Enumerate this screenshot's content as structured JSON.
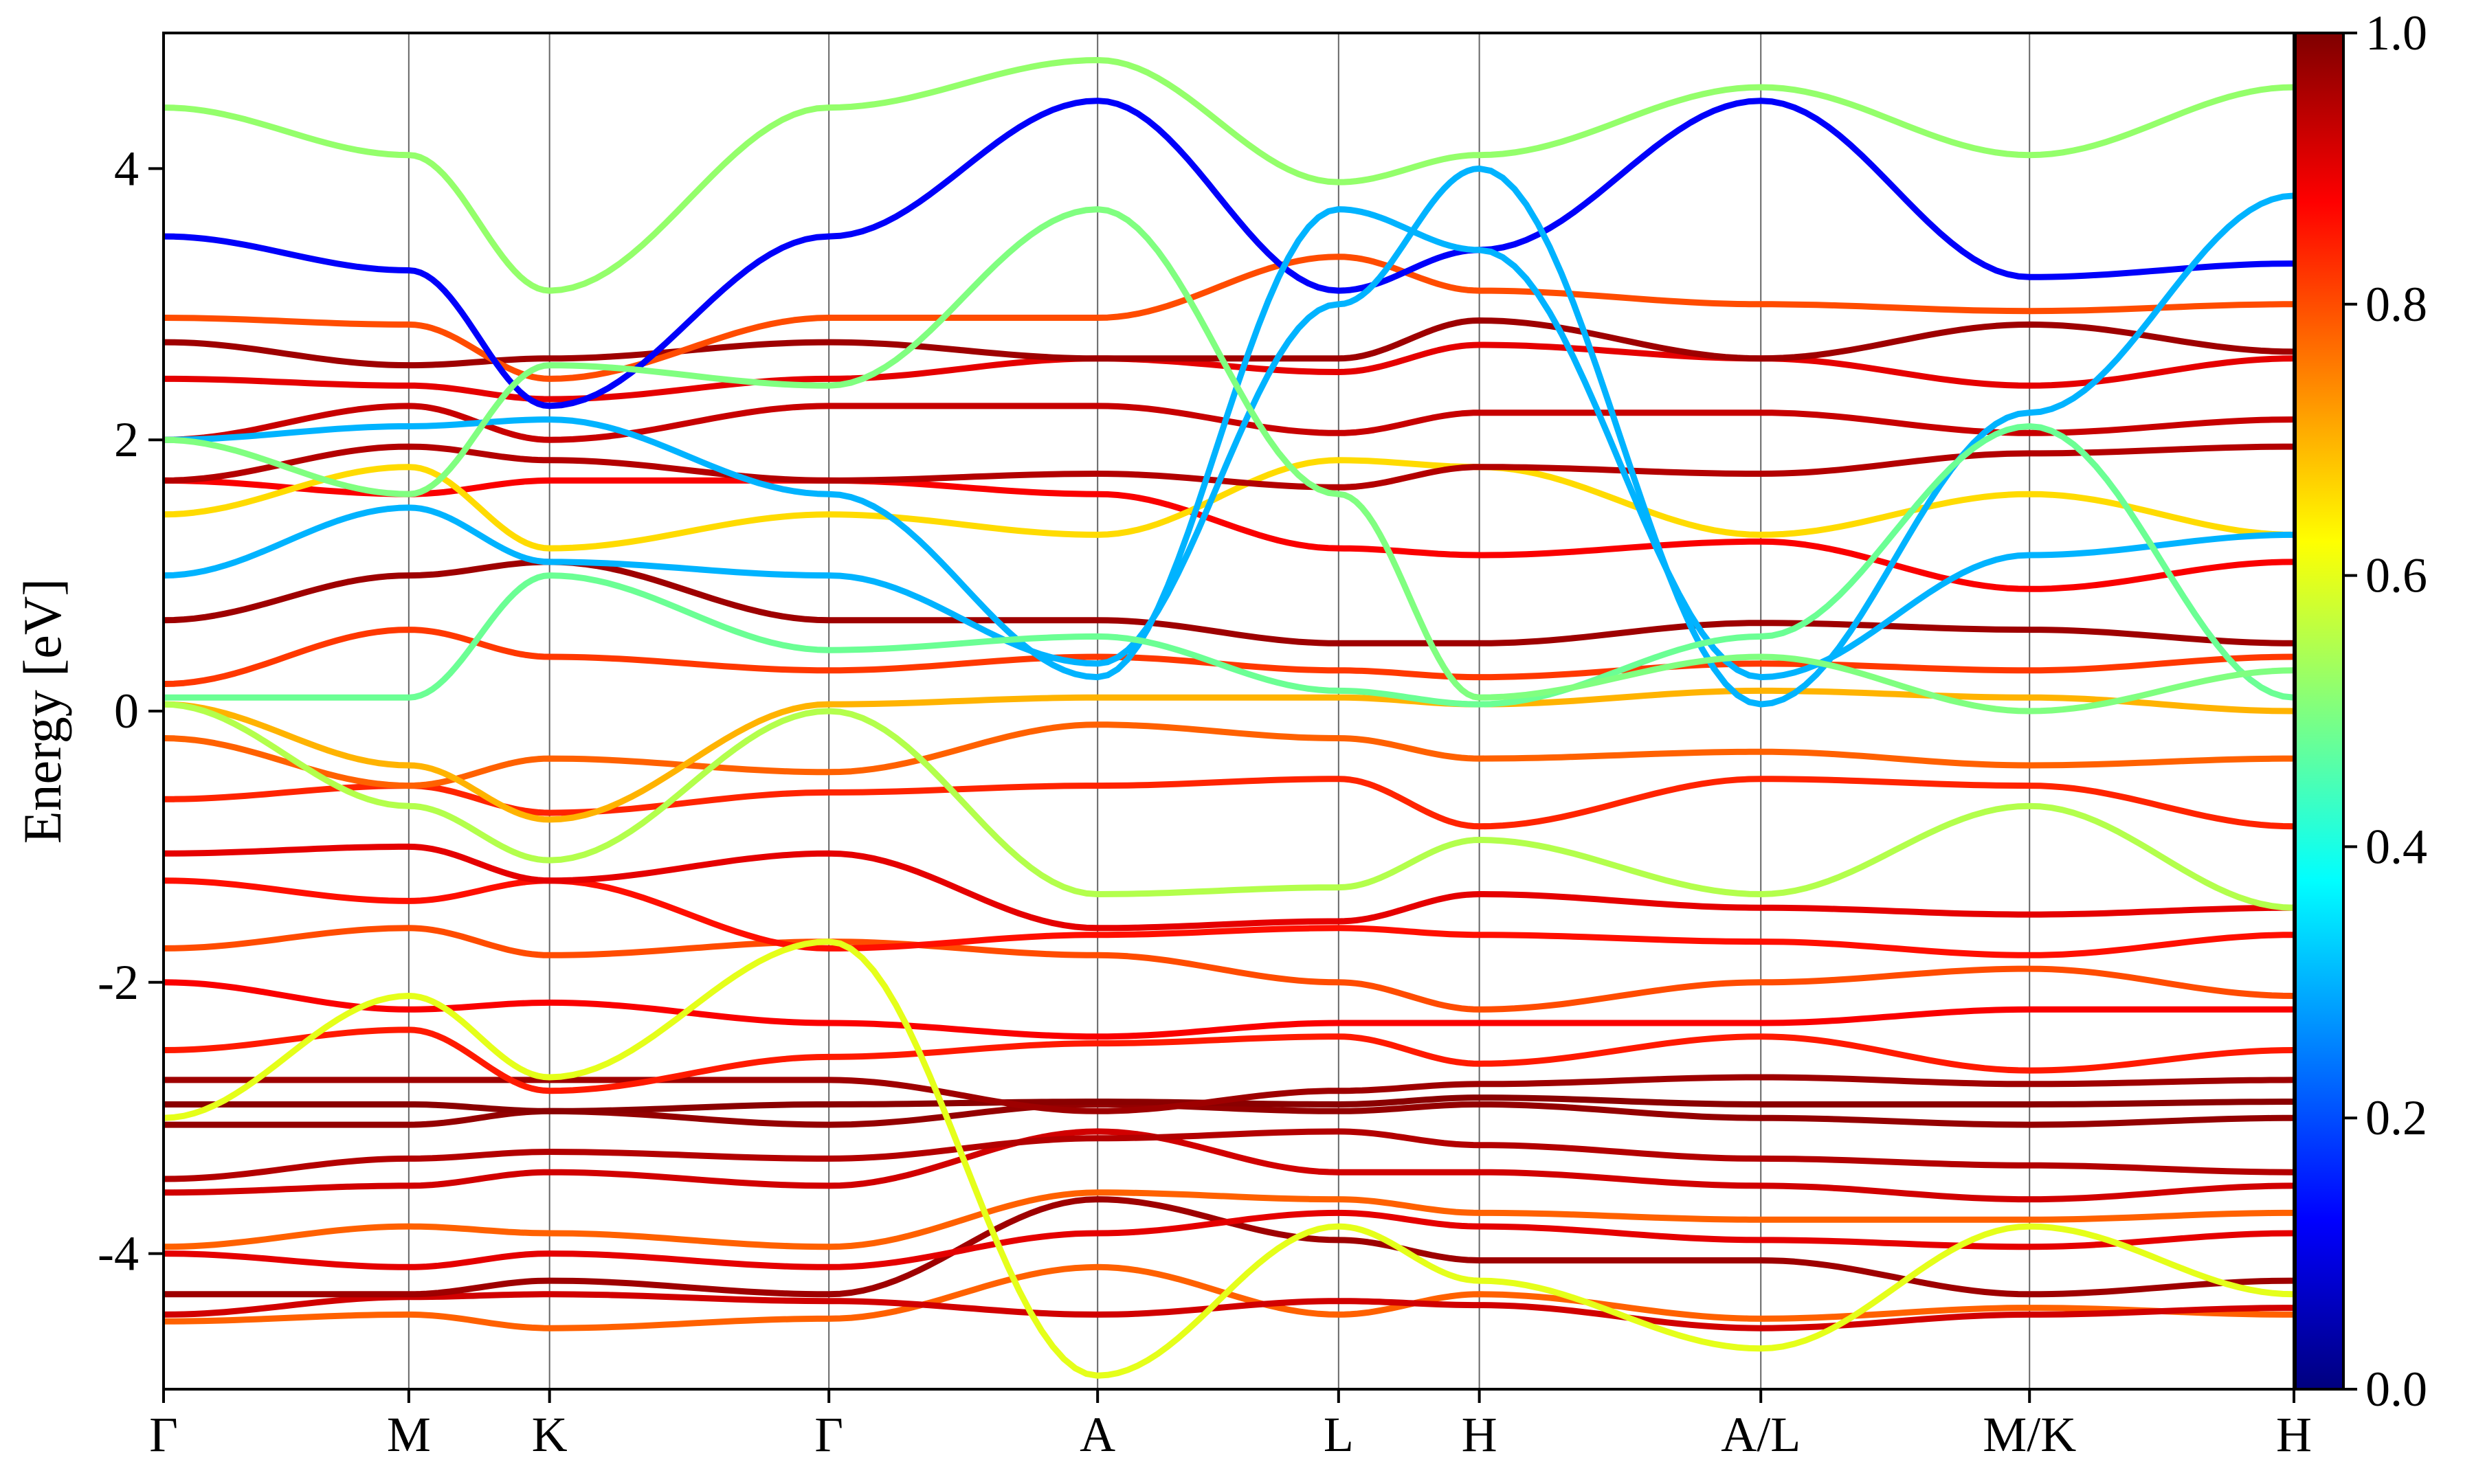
{
  "chart_data": {
    "type": "line",
    "plot_kind": "band structure with projected weight (colored bands)",
    "ylabel": "Energy [eV]",
    "ylim": [
      -5,
      5
    ],
    "yticks": [
      {
        "value": 4,
        "label": "4"
      },
      {
        "value": 2,
        "label": "2"
      },
      {
        "value": 0,
        "label": "0"
      },
      {
        "value": -2,
        "label": "-2"
      },
      {
        "value": -4,
        "label": "-4"
      }
    ],
    "kpath": {
      "segment_lengths": [
        0.115,
        0.066,
        0.131,
        0.126,
        0.113,
        0.066,
        0.132,
        0.126,
        0.124
      ],
      "labels": [
        "Γ",
        "M",
        "K",
        "Γ",
        "A",
        "L",
        "H",
        "A/L",
        "M/K",
        "H"
      ]
    },
    "colorbar": {
      "colormap": "jet",
      "range": [
        0.0,
        1.0
      ],
      "ticks": [
        "0.0",
        "0.2",
        "0.4",
        "0.6",
        "0.8",
        "1.0"
      ]
    },
    "bands": [
      {
        "w": 0.78,
        "y": [
          -4.5,
          -4.45,
          -4.55,
          -4.48,
          -4.1,
          -4.45,
          -4.3,
          -4.48,
          -4.4,
          -4.45
        ]
      },
      {
        "w": 0.92,
        "y": [
          -4.45,
          -4.32,
          -4.3,
          -4.35,
          -4.45,
          -4.35,
          -4.38,
          -4.55,
          -4.45,
          -4.4
        ]
      },
      {
        "w": 0.97,
        "y": [
          -4.3,
          -4.3,
          -4.2,
          -4.3,
          -3.6,
          -3.9,
          -4.05,
          -4.05,
          -4.3,
          -4.2
        ]
      },
      {
        "w": 0.9,
        "y": [
          -4.0,
          -4.1,
          -4.0,
          -4.1,
          -3.85,
          -3.7,
          -3.8,
          -3.9,
          -3.95,
          -3.85
        ]
      },
      {
        "w": 0.78,
        "y": [
          -3.95,
          -3.8,
          -3.85,
          -3.95,
          -3.55,
          -3.6,
          -3.7,
          -3.75,
          -3.75,
          -3.7
        ]
      },
      {
        "w": 0.92,
        "y": [
          -3.55,
          -3.5,
          -3.4,
          -3.5,
          -3.1,
          -3.4,
          -3.4,
          -3.5,
          -3.6,
          -3.5
        ]
      },
      {
        "w": 0.95,
        "y": [
          -3.45,
          -3.3,
          -3.25,
          -3.3,
          -3.15,
          -3.1,
          -3.2,
          -3.3,
          -3.35,
          -3.4
        ]
      },
      {
        "w": 0.98,
        "y": [
          -3.05,
          -3.05,
          -2.95,
          -3.05,
          -2.9,
          -2.95,
          -2.9,
          -3.0,
          -3.05,
          -3.0
        ]
      },
      {
        "w": 0.99,
        "y": [
          -2.9,
          -2.9,
          -2.95,
          -2.9,
          -2.88,
          -2.9,
          -2.85,
          -2.9,
          -2.9,
          -2.88
        ]
      },
      {
        "w": 0.97,
        "y": [
          -2.72,
          -2.72,
          -2.72,
          -2.72,
          -2.95,
          -2.8,
          -2.75,
          -2.7,
          -2.75,
          -2.72
        ]
      },
      {
        "w": 0.85,
        "y": [
          -2.5,
          -2.35,
          -2.8,
          -2.55,
          -2.45,
          -2.4,
          -2.6,
          -2.4,
          -2.65,
          -2.5
        ]
      },
      {
        "w": 0.88,
        "y": [
          -2.0,
          -2.2,
          -2.15,
          -2.3,
          -2.4,
          -2.3,
          -2.3,
          -2.3,
          -2.2,
          -2.2
        ]
      },
      {
        "w": 0.8,
        "y": [
          -1.75,
          -1.6,
          -1.8,
          -1.7,
          -1.8,
          -2.0,
          -2.2,
          -2.0,
          -1.9,
          -2.1
        ]
      },
      {
        "w": 0.86,
        "y": [
          -1.25,
          -1.4,
          -1.25,
          -1.75,
          -1.65,
          -1.6,
          -1.65,
          -1.7,
          -1.8,
          -1.65
        ]
      },
      {
        "w": 0.9,
        "y": [
          -1.05,
          -1.0,
          -1.25,
          -1.05,
          -1.6,
          -1.55,
          -1.35,
          -1.45,
          -1.5,
          -1.45
        ]
      },
      {
        "w": 0.84,
        "y": [
          -0.65,
          -0.55,
          -0.75,
          -0.6,
          -0.55,
          -0.5,
          -0.85,
          -0.5,
          -0.55,
          -0.85
        ]
      },
      {
        "w": 0.78,
        "y": [
          -0.2,
          -0.55,
          -0.35,
          -0.45,
          -0.1,
          -0.2,
          -0.35,
          -0.3,
          -0.4,
          -0.35
        ]
      },
      {
        "w": 0.7,
        "y": [
          0.05,
          -0.4,
          -0.8,
          0.05,
          0.1,
          0.1,
          0.05,
          0.15,
          0.1,
          0.0
        ]
      },
      {
        "w": 0.82,
        "y": [
          0.2,
          0.6,
          0.4,
          0.3,
          0.4,
          0.3,
          0.25,
          0.35,
          0.3,
          0.4
        ]
      },
      {
        "w": 0.97,
        "y": [
          0.67,
          1.0,
          1.1,
          0.67,
          0.67,
          0.5,
          0.5,
          0.65,
          0.6,
          0.5
        ]
      },
      {
        "w": 0.88,
        "y": [
          1.7,
          1.6,
          1.7,
          1.7,
          1.6,
          1.2,
          1.15,
          1.25,
          0.9,
          1.1
        ]
      },
      {
        "w": 0.66,
        "y": [
          1.45,
          1.8,
          1.2,
          1.45,
          1.3,
          1.85,
          1.8,
          1.3,
          1.6,
          1.3
        ]
      },
      {
        "w": 0.95,
        "y": [
          1.7,
          1.95,
          1.85,
          1.7,
          1.75,
          1.65,
          1.8,
          1.75,
          1.9,
          1.95
        ]
      },
      {
        "w": 0.93,
        "y": [
          2.0,
          2.25,
          2.0,
          2.25,
          2.25,
          2.05,
          2.2,
          2.2,
          2.05,
          2.15
        ]
      },
      {
        "w": 0.9,
        "y": [
          2.45,
          2.4,
          2.3,
          2.45,
          2.6,
          2.5,
          2.7,
          2.6,
          2.4,
          2.6
        ]
      },
      {
        "w": 0.97,
        "y": [
          2.72,
          2.55,
          2.6,
          2.72,
          2.6,
          2.6,
          2.88,
          2.6,
          2.85,
          2.65
        ]
      },
      {
        "w": 0.8,
        "y": [
          2.9,
          2.85,
          2.45,
          2.9,
          2.9,
          3.35,
          3.1,
          3.0,
          2.95,
          3.0
        ]
      },
      {
        "w": 0.12,
        "y": [
          3.5,
          3.25,
          2.25,
          3.5,
          4.5,
          3.1,
          3.4,
          4.5,
          3.2,
          3.3
        ]
      },
      {
        "w": 0.3,
        "y": [
          1.0,
          1.5,
          1.1,
          1.0,
          0.35,
          3.0,
          4.0,
          0.05,
          2.2,
          3.8
        ]
      },
      {
        "w": 0.3,
        "y": [
          2.0,
          2.1,
          2.15,
          1.6,
          0.25,
          3.7,
          3.4,
          0.25,
          1.15,
          1.3
        ]
      },
      {
        "w": 0.48,
        "y": [
          0.1,
          0.1,
          1.0,
          0.45,
          0.55,
          0.15,
          0.05,
          0.55,
          2.1,
          0.1
        ]
      },
      {
        "w": 0.52,
        "y": [
          4.45,
          4.1,
          3.1,
          4.45,
          4.8,
          3.9,
          4.1,
          4.6,
          4.1,
          4.6
        ]
      },
      {
        "w": 0.6,
        "y": [
          -3.0,
          -2.1,
          -2.7,
          -1.7,
          -4.9,
          -3.8,
          -4.2,
          -4.7,
          -3.8,
          -4.3
        ]
      },
      {
        "w": 0.55,
        "y": [
          0.05,
          -0.7,
          -1.1,
          0.0,
          -1.35,
          -1.3,
          -0.95,
          -1.35,
          -0.7,
          -1.45
        ]
      },
      {
        "w": 0.5,
        "y": [
          2.0,
          1.6,
          2.55,
          2.4,
          3.7,
          1.6,
          0.1,
          0.4,
          0.0,
          0.3
        ]
      }
    ]
  }
}
